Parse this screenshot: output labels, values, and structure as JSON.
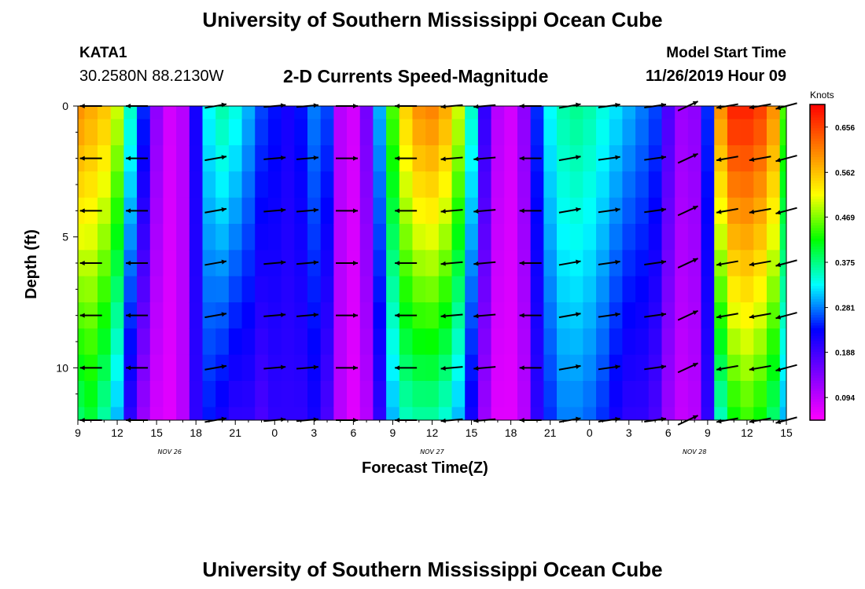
{
  "header": {
    "title": "University of Southern Mississippi Ocean Cube",
    "station_id": "KATA1",
    "station_coords": "30.2580N 88.2130W",
    "chart_title": "2-D Currents Speed-Magnitude",
    "model_start_label": "Model Start Time",
    "model_start_value": "11/26/2019 Hour 09"
  },
  "footer": {
    "title": "University of Southern Mississippi Ocean Cube"
  },
  "chart_data": {
    "type": "heatmap",
    "title": "2-D Currents Speed-Magnitude",
    "xlabel": "Forecast Time(Z)",
    "ylabel": "Depth (ft)",
    "x_range_hours_from_start": [
      0,
      54
    ],
    "y_range_ft": [
      0,
      12
    ],
    "y_inverted": true,
    "x_tick_labels": [
      "9",
      "12",
      "15",
      "18",
      "21",
      "0",
      "3",
      "6",
      "9",
      "12",
      "15",
      "18",
      "21",
      "0",
      "3",
      "6",
      "9",
      "12",
      "15"
    ],
    "date_labels": [
      {
        "text": "NOV 26",
        "hour": 7
      },
      {
        "text": "NOV 27",
        "hour": 27
      },
      {
        "text": "NOV 28",
        "hour": 47
      }
    ],
    "y_ticks": [
      0,
      5,
      10
    ],
    "colorbar": {
      "unit": "Knots",
      "min": 0.047,
      "max": 0.703,
      "tick_values": [
        0.656,
        0.562,
        0.469,
        0.375,
        0.281,
        0.188,
        0.094
      ],
      "tick_labels": [
        "0.656",
        "0.562",
        "0.469",
        "0.375",
        "0.281",
        "0.188",
        "0.094"
      ]
    },
    "depth_rows_ft": [
      0,
      0.5,
      1.5,
      2.5,
      3.5,
      4.5,
      5.5,
      6.5,
      7.5,
      8.5,
      9.5,
      10.5,
      11.5,
      12
    ],
    "speed_profile": {
      "description_hours": [
        0,
        1,
        2,
        3,
        4,
        5,
        6,
        7,
        8,
        9,
        10,
        11,
        12,
        13,
        14,
        15,
        16,
        17,
        18,
        19,
        20,
        21,
        22,
        23,
        24,
        25,
        26,
        27,
        28,
        29,
        30,
        31,
        32,
        33,
        34,
        35,
        36,
        37,
        38,
        39,
        40,
        41,
        42,
        43,
        44,
        45,
        46,
        47,
        48,
        49,
        50,
        51,
        52,
        53,
        54
      ],
      "surface_knots": [
        0.6,
        0.58,
        0.56,
        0.5,
        0.35,
        0.25,
        0.13,
        0.08,
        0.1,
        0.22,
        0.33,
        0.36,
        0.34,
        0.3,
        0.26,
        0.24,
        0.22,
        0.24,
        0.28,
        0.26,
        0.1,
        0.08,
        0.15,
        0.3,
        0.45,
        0.55,
        0.6,
        0.61,
        0.58,
        0.5,
        0.35,
        0.2,
        0.1,
        0.08,
        0.13,
        0.25,
        0.33,
        0.36,
        0.37,
        0.36,
        0.34,
        0.32,
        0.3,
        0.28,
        0.26,
        0.18,
        0.12,
        0.13,
        0.25,
        0.6,
        0.68,
        0.68,
        0.66,
        0.6,
        0.45
      ],
      "bottom_knots": [
        0.38,
        0.4,
        0.36,
        0.3,
        0.2,
        0.12,
        0.08,
        0.07,
        0.1,
        0.2,
        0.24,
        0.22,
        0.2,
        0.2,
        0.18,
        0.2,
        0.2,
        0.2,
        0.22,
        0.18,
        0.1,
        0.07,
        0.1,
        0.2,
        0.3,
        0.35,
        0.36,
        0.36,
        0.34,
        0.3,
        0.22,
        0.12,
        0.07,
        0.07,
        0.1,
        0.2,
        0.25,
        0.28,
        0.28,
        0.27,
        0.25,
        0.22,
        0.2,
        0.2,
        0.18,
        0.12,
        0.09,
        0.1,
        0.2,
        0.35,
        0.42,
        0.44,
        0.42,
        0.38,
        0.3
      ]
    },
    "vectors": {
      "hours": [
        1,
        4.5,
        10.5,
        15,
        17.5,
        20.5,
        25,
        28.5,
        31,
        34.5,
        37.5,
        40.5,
        44,
        46.5,
        49.5,
        52,
        54
      ],
      "depths_ft": [
        0,
        2,
        4,
        6,
        8,
        10,
        12
      ],
      "angle_deg": [
        180,
        180,
        10,
        5,
        5,
        0,
        180,
        185,
        185,
        180,
        10,
        8,
        8,
        25,
        190,
        190,
        195
      ],
      "length_scale": 1
    },
    "colors": [
      "#ff00ff",
      "#8000ff",
      "#0000ff",
      "#00ffff",
      "#00ff00",
      "#ffff00",
      "#ff8000",
      "#ff0000"
    ]
  }
}
